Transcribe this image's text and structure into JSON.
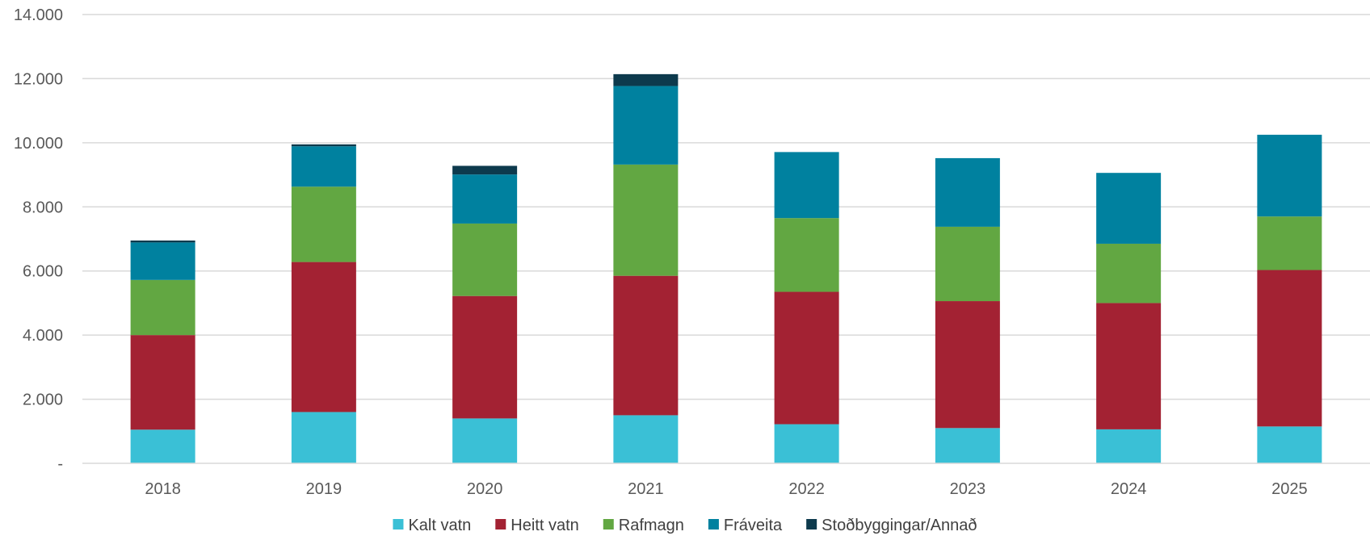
{
  "chart_data": {
    "type": "bar",
    "stacked": true,
    "title": "",
    "xlabel": "",
    "ylabel": "",
    "ylim": [
      0,
      14000
    ],
    "y_ticks": [
      0,
      2000,
      4000,
      6000,
      8000,
      10000,
      12000,
      14000
    ],
    "y_tick_labels": [
      "-",
      "2.000",
      "4.000",
      "6.000",
      "8.000",
      "10.000",
      "12.000",
      "14.000"
    ],
    "grid": true,
    "legend_position": "bottom",
    "categories": [
      "2018",
      "2019",
      "2020",
      "2021",
      "2022",
      "2023",
      "2024",
      "2025"
    ],
    "series": [
      {
        "name": "Kalt vatn",
        "color": "#3ac0d6",
        "values": [
          1050,
          1600,
          1400,
          1500,
          1220,
          1100,
          1060,
          1150
        ]
      },
      {
        "name": "Heitt vatn",
        "color": "#a32233",
        "values": [
          2950,
          4680,
          3820,
          4350,
          4130,
          3960,
          3940,
          4880
        ]
      },
      {
        "name": "Rafmagn",
        "color": "#62a742",
        "values": [
          1720,
          2350,
          2260,
          3470,
          2300,
          2320,
          1850,
          1670
        ]
      },
      {
        "name": "Fráveita",
        "color": "#00819f",
        "values": [
          1170,
          1260,
          1530,
          2450,
          2060,
          2140,
          2210,
          2550
        ]
      },
      {
        "name": "Stoðbyggingar/Annað",
        "color": "#0d3a4d",
        "values": [
          60,
          60,
          270,
          370,
          0,
          0,
          0,
          0
        ]
      }
    ]
  }
}
